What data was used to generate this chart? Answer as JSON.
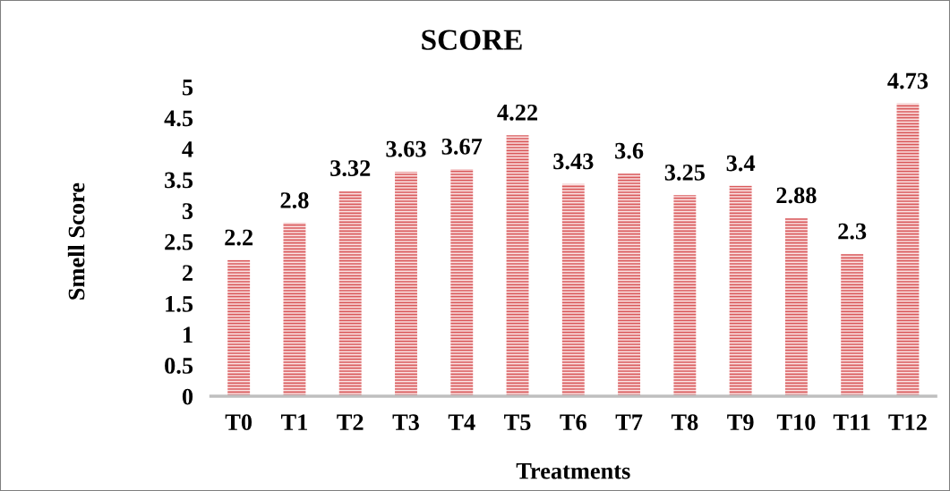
{
  "chart_data": {
    "type": "bar",
    "title": "SCORE",
    "xlabel": "Treatments",
    "ylabel": "Smell Score",
    "categories": [
      "T0",
      "T1",
      "T2",
      "T3",
      "T4",
      "T5",
      "T6",
      "T7",
      "T8",
      "T9",
      "T10",
      "T11",
      "T12"
    ],
    "values": [
      2.2,
      2.8,
      3.32,
      3.63,
      3.67,
      4.22,
      3.43,
      3.6,
      3.25,
      3.4,
      2.88,
      2.3,
      4.73
    ],
    "color": "#d9595b",
    "ylim": [
      0,
      5
    ],
    "yticks": [
      0,
      0.5,
      1,
      1.5,
      2,
      2.5,
      3,
      3.5,
      4,
      4.5,
      5
    ],
    "grid": false,
    "data_labels": true
  }
}
